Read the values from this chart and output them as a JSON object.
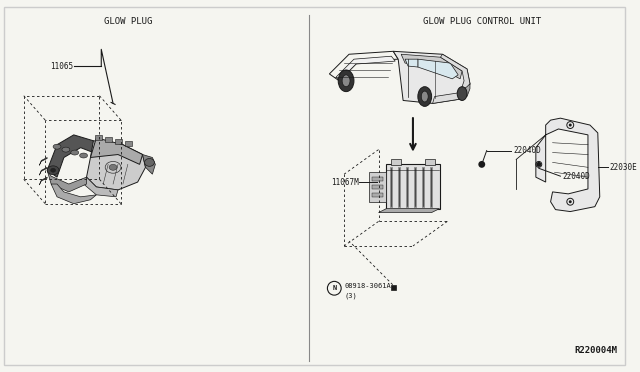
{
  "title_left": "GLOW PLUG",
  "title_right": "GLOW PLUG CONTROL UNIT",
  "label_11065": "11065",
  "label_11067M": "11067M",
  "label_22040D_top": "22040D",
  "label_22040D_bot": "22040D",
  "label_22030E": "22030E",
  "label_ref": "R220004M",
  "label_note1": "08918-3061A",
  "label_note2": "(3)",
  "bg_color": "#f5f5f0",
  "line_color": "#1a1a1a",
  "text_color": "#1a1a1a",
  "font_size_title": 6.5,
  "font_size_label": 5.5,
  "font_size_ref": 6.5,
  "divider_color": "#888888",
  "border_color": "#cccccc"
}
